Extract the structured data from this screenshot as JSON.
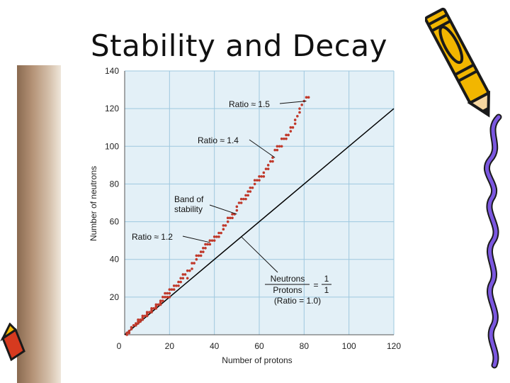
{
  "slide": {
    "title": "Stability and Decay"
  },
  "chart_data": {
    "type": "scatter",
    "title": "",
    "xlabel": "Number of protons",
    "ylabel": "Number of neutrons",
    "xlim": [
      0,
      120
    ],
    "ylim": [
      0,
      140
    ],
    "xticks": [
      0,
      20,
      40,
      60,
      80,
      100,
      120
    ],
    "yticks": [
      20,
      40,
      60,
      80,
      100,
      120,
      140
    ],
    "grid": true,
    "colors": {
      "points": "#c0392b",
      "line": "#000000",
      "plot_bg": "#e3f0f7",
      "grid": "#9ec8df"
    },
    "series": [
      {
        "type": "scatter",
        "points": [
          [
            1,
            0
          ],
          [
            1,
            1
          ],
          [
            2,
            1
          ],
          [
            2,
            2
          ],
          [
            3,
            3
          ],
          [
            3,
            4
          ],
          [
            4,
            5
          ],
          [
            5,
            5
          ],
          [
            5,
            6
          ],
          [
            6,
            6
          ],
          [
            6,
            7
          ],
          [
            6,
            8
          ],
          [
            7,
            7
          ],
          [
            7,
            8
          ],
          [
            8,
            8
          ],
          [
            8,
            9
          ],
          [
            8,
            10
          ],
          [
            9,
            10
          ],
          [
            10,
            10
          ],
          [
            10,
            11
          ],
          [
            10,
            12
          ],
          [
            11,
            12
          ],
          [
            12,
            12
          ],
          [
            12,
            13
          ],
          [
            12,
            14
          ],
          [
            13,
            14
          ],
          [
            14,
            14
          ],
          [
            14,
            15
          ],
          [
            14,
            16
          ],
          [
            15,
            16
          ],
          [
            16,
            16
          ],
          [
            16,
            17
          ],
          [
            16,
            18
          ],
          [
            17,
            18
          ],
          [
            17,
            20
          ],
          [
            18,
            20
          ],
          [
            18,
            22
          ],
          [
            19,
            20
          ],
          [
            19,
            22
          ],
          [
            20,
            20
          ],
          [
            20,
            22
          ],
          [
            20,
            24
          ],
          [
            21,
            24
          ],
          [
            22,
            24
          ],
          [
            22,
            26
          ],
          [
            23,
            26
          ],
          [
            24,
            26
          ],
          [
            24,
            28
          ],
          [
            25,
            28
          ],
          [
            25,
            30
          ],
          [
            26,
            30
          ],
          [
            26,
            32
          ],
          [
            27,
            32
          ],
          [
            28,
            30
          ],
          [
            28,
            34
          ],
          [
            29,
            34
          ],
          [
            30,
            35
          ],
          [
            30,
            38
          ],
          [
            31,
            38
          ],
          [
            32,
            40
          ],
          [
            32,
            42
          ],
          [
            33,
            42
          ],
          [
            34,
            42
          ],
          [
            34,
            44
          ],
          [
            35,
            44
          ],
          [
            35,
            46
          ],
          [
            36,
            46
          ],
          [
            36,
            48
          ],
          [
            37,
            48
          ],
          [
            38,
            48
          ],
          [
            38,
            50
          ],
          [
            39,
            50
          ],
          [
            40,
            50
          ],
          [
            40,
            52
          ],
          [
            41,
            52
          ],
          [
            42,
            52
          ],
          [
            42,
            54
          ],
          [
            43,
            54
          ],
          [
            44,
            56
          ],
          [
            44,
            58
          ],
          [
            45,
            58
          ],
          [
            46,
            60
          ],
          [
            46,
            62
          ],
          [
            47,
            62
          ],
          [
            48,
            62
          ],
          [
            48,
            64
          ],
          [
            49,
            64
          ],
          [
            50,
            66
          ],
          [
            50,
            68
          ],
          [
            51,
            70
          ],
          [
            52,
            70
          ],
          [
            52,
            72
          ],
          [
            53,
            72
          ],
          [
            54,
            72
          ],
          [
            54,
            74
          ],
          [
            55,
            74
          ],
          [
            55,
            76
          ],
          [
            56,
            76
          ],
          [
            56,
            78
          ],
          [
            57,
            78
          ],
          [
            58,
            80
          ],
          [
            58,
            82
          ],
          [
            59,
            82
          ],
          [
            60,
            82
          ],
          [
            60,
            84
          ],
          [
            61,
            84
          ],
          [
            62,
            84
          ],
          [
            62,
            86
          ],
          [
            63,
            88
          ],
          [
            64,
            88
          ],
          [
            64,
            90
          ],
          [
            65,
            92
          ],
          [
            66,
            92
          ],
          [
            66,
            94
          ],
          [
            67,
            98
          ],
          [
            68,
            98
          ],
          [
            68,
            100
          ],
          [
            69,
            100
          ],
          [
            70,
            100
          ],
          [
            70,
            104
          ],
          [
            71,
            104
          ],
          [
            72,
            104
          ],
          [
            72,
            106
          ],
          [
            73,
            106
          ],
          [
            74,
            108
          ],
          [
            74,
            110
          ],
          [
            75,
            110
          ],
          [
            76,
            112
          ],
          [
            76,
            114
          ],
          [
            77,
            116
          ],
          [
            78,
            118
          ],
          [
            78,
            120
          ],
          [
            79,
            122
          ],
          [
            80,
            124
          ],
          [
            81,
            126
          ],
          [
            82,
            126
          ]
        ]
      },
      {
        "type": "line",
        "points": [
          [
            0,
            0
          ],
          [
            120,
            120
          ]
        ]
      }
    ],
    "annotations": [
      {
        "id": "ratio_15",
        "lines": [
          "Ratio ≈ 1.5"
        ],
        "target": [
          81,
          124
        ]
      },
      {
        "id": "ratio_14",
        "lines": [
          "Ratio ≈ 1.4"
        ],
        "target": [
          67,
          94
        ]
      },
      {
        "id": "band",
        "lines": [
          "Band of",
          "stability"
        ],
        "target": [
          50,
          64
        ]
      },
      {
        "id": "ratio_12",
        "lines": [
          "Ratio ≈ 1.2"
        ],
        "target": [
          38,
          49
        ]
      },
      {
        "id": "line_label",
        "eq_left": [
          "Neutrons",
          "Protons"
        ],
        "eq_equals": "=",
        "eq_right": [
          "1",
          "1"
        ],
        "sub": "(Ratio = 1.0)",
        "target": [
          52,
          52
        ]
      }
    ]
  }
}
